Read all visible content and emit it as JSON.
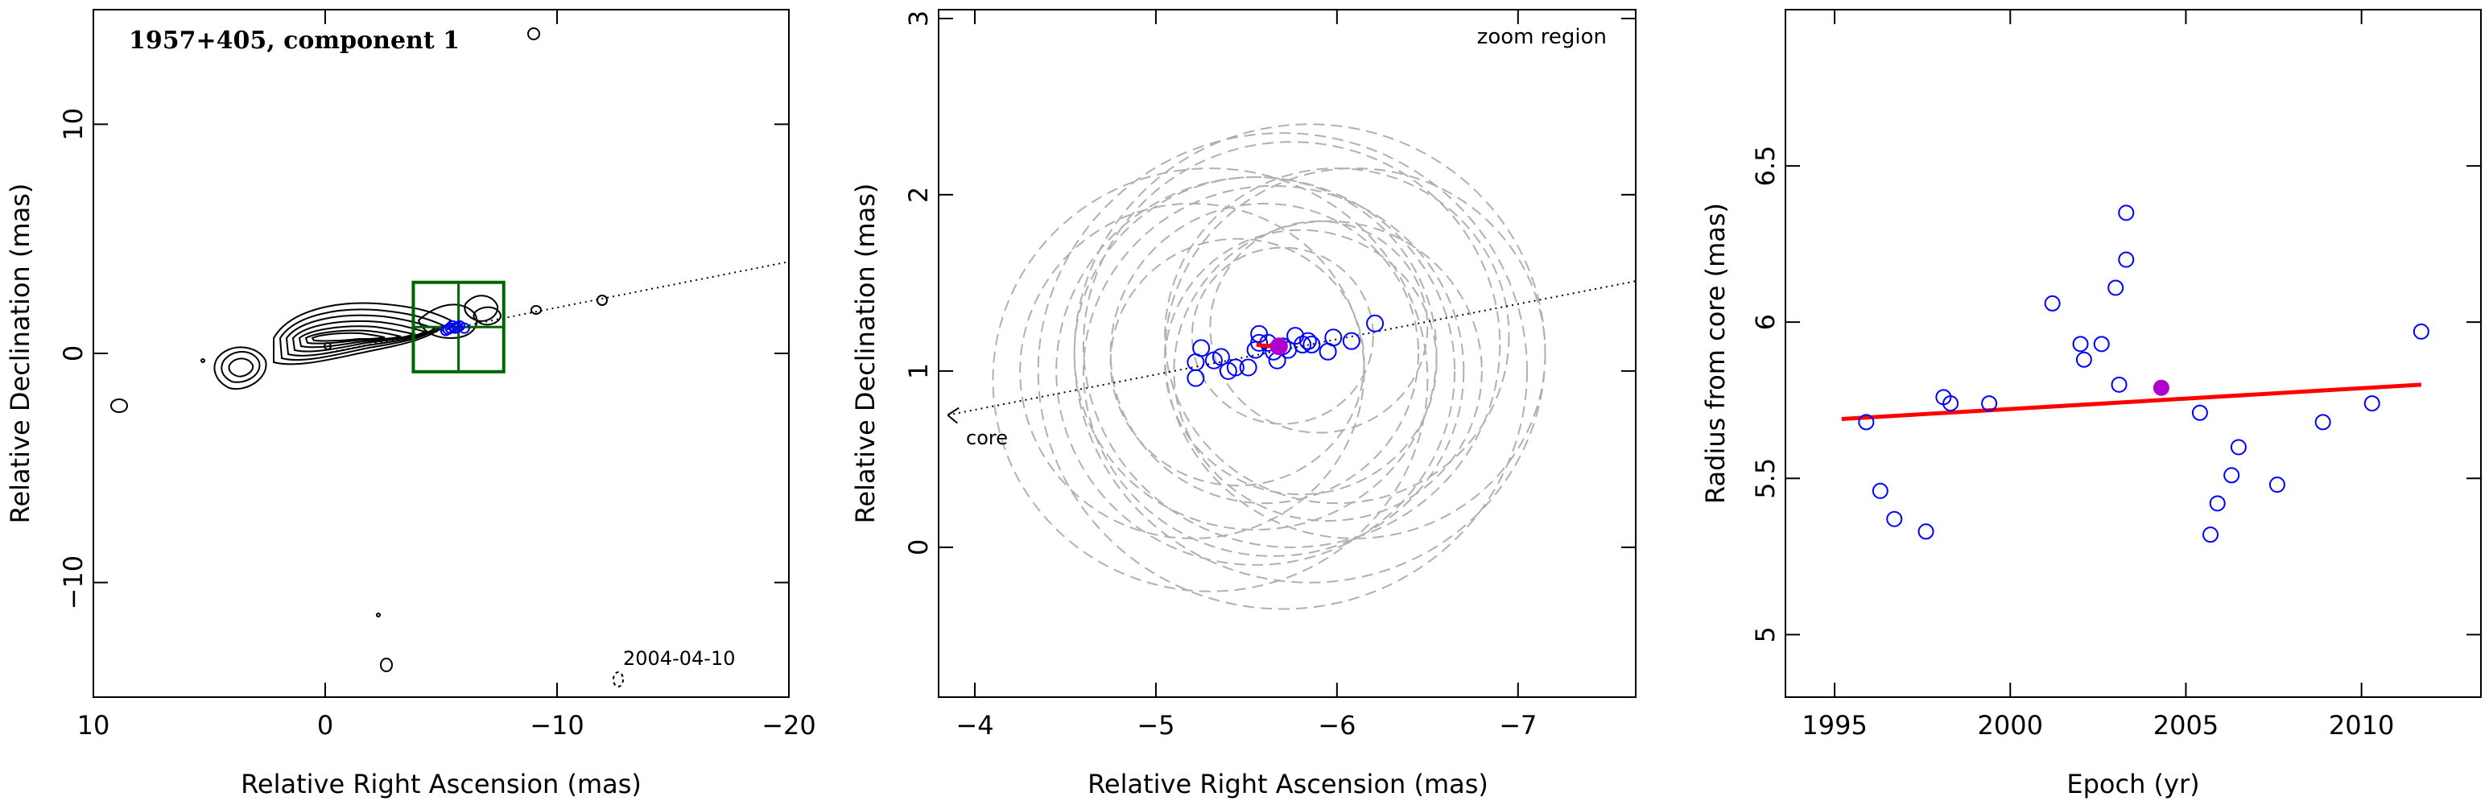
{
  "chart_data": [
    {
      "type": "scatter",
      "subtype": "vlbi-contour-map",
      "title": "1957+405, component 1",
      "date_label": "2004-04-10",
      "xlabel": "Relative Right Ascension (mas)",
      "ylabel": "Relative Declination (mas)",
      "xlim": [
        10,
        -20
      ],
      "ylim": [
        -15,
        15
      ],
      "xticks": [
        10,
        0,
        -10,
        -20
      ],
      "yticks": [
        -10,
        0,
        10
      ],
      "xtick_labels": [
        "10",
        "0",
        "−10",
        "−20"
      ],
      "ytick_labels": [
        "−10",
        "0",
        "10"
      ],
      "core_direction_line": {
        "from": [
          0,
          0
        ],
        "to": [
          -20,
          4.0
        ]
      },
      "zoom_box": {
        "x": [
          -3.8,
          -7.7
        ],
        "y": [
          -0.8,
          3.1
        ]
      },
      "component_positions": [
        {
          "x": -5.2,
          "y": 1.0
        },
        {
          "x": -5.4,
          "y": 1.1
        },
        {
          "x": -5.6,
          "y": 1.1
        },
        {
          "x": -5.8,
          "y": 1.2
        },
        {
          "x": -6.0,
          "y": 1.1
        },
        {
          "x": -5.5,
          "y": 1.2
        },
        {
          "x": -5.7,
          "y": 1.15
        },
        {
          "x": -5.3,
          "y": 1.05
        }
      ],
      "series_colors": {
        "contour": "#000000",
        "points": "#0000ff",
        "zoom_box": "#006400"
      }
    },
    {
      "type": "scatter",
      "subtype": "zoom-region",
      "annotation": "zoom region",
      "core_label": "core",
      "xlabel": "Relative Right Ascension (mas)",
      "ylabel": "Relative Declination (mas)",
      "xlim": [
        -3.8,
        -7.65
      ],
      "ylim": [
        -0.85,
        3.05
      ],
      "xticks": [
        -4,
        -5,
        -6,
        -7
      ],
      "yticks": [
        0,
        1,
        2,
        3
      ],
      "xtick_labels": [
        "−4",
        "−5",
        "−6",
        "−7"
      ],
      "ytick_labels": [
        "0",
        "1",
        "2",
        "3"
      ],
      "core_direction_line": {
        "from": [
          -3.85,
          0.75
        ],
        "to": [
          -7.65,
          1.51
        ]
      },
      "points": [
        {
          "x": -5.22,
          "y": 0.96
        },
        {
          "x": -5.22,
          "y": 1.05
        },
        {
          "x": -5.25,
          "y": 1.13
        },
        {
          "x": -5.32,
          "y": 1.06
        },
        {
          "x": -5.36,
          "y": 1.08
        },
        {
          "x": -5.4,
          "y": 1.0
        },
        {
          "x": -5.44,
          "y": 1.02
        },
        {
          "x": -5.51,
          "y": 1.02
        },
        {
          "x": -5.55,
          "y": 1.12
        },
        {
          "x": -5.57,
          "y": 1.16
        },
        {
          "x": -5.57,
          "y": 1.21
        },
        {
          "x": -5.62,
          "y": 1.16
        },
        {
          "x": -5.65,
          "y": 1.11
        },
        {
          "x": -5.67,
          "y": 1.06
        },
        {
          "x": -5.7,
          "y": 1.14
        },
        {
          "x": -5.73,
          "y": 1.12
        },
        {
          "x": -5.77,
          "y": 1.2
        },
        {
          "x": -5.81,
          "y": 1.15
        },
        {
          "x": -5.84,
          "y": 1.17
        },
        {
          "x": -5.86,
          "y": 1.15
        },
        {
          "x": -5.95,
          "y": 1.11
        },
        {
          "x": -5.98,
          "y": 1.19
        },
        {
          "x": -6.08,
          "y": 1.17
        },
        {
          "x": -6.21,
          "y": 1.27
        }
      ],
      "mean_point": {
        "x": -5.68,
        "y": 1.14
      },
      "circles": [
        {
          "cx": -5.65,
          "cy": 1.0,
          "r": 1.05
        },
        {
          "cx": -5.85,
          "cy": 1.1,
          "r": 1.3
        },
        {
          "cx": -5.55,
          "cy": 1.0,
          "r": 1.1
        },
        {
          "cx": -5.75,
          "cy": 1.15,
          "r": 1.15
        },
        {
          "cx": -5.3,
          "cy": 0.95,
          "r": 1.2
        },
        {
          "cx": -5.7,
          "cy": 1.0,
          "r": 1.35
        },
        {
          "cx": -6.0,
          "cy": 1.2,
          "r": 0.95
        },
        {
          "cx": -5.8,
          "cy": 1.05,
          "r": 0.75
        },
        {
          "cx": -5.6,
          "cy": 1.1,
          "r": 0.85
        },
        {
          "cx": -5.9,
          "cy": 1.25,
          "r": 0.6
        },
        {
          "cx": -5.45,
          "cy": 1.05,
          "r": 0.7
        },
        {
          "cx": -5.2,
          "cy": 1.0,
          "r": 0.95
        },
        {
          "cx": -6.1,
          "cy": 1.1,
          "r": 1.05
        },
        {
          "cx": -5.7,
          "cy": 1.2,
          "r": 0.5
        },
        {
          "cx": -5.55,
          "cy": 1.1,
          "r": 1.0
        },
        {
          "cx": -5.95,
          "cy": 1.0,
          "r": 0.85
        }
      ],
      "series_colors": {
        "points": "#0000ff",
        "mean": "#b000d0",
        "arrow": "#ff0000",
        "circles": "#b0b0b0"
      }
    },
    {
      "type": "scatter",
      "subtype": "radius-vs-epoch",
      "xlabel": "Epoch (yr)",
      "ylabel": "Radius from core (mas)",
      "xlim": [
        1993.6,
        2013.4
      ],
      "ylim": [
        4.8,
        7.0
      ],
      "xticks": [
        1995,
        2000,
        2005,
        2010
      ],
      "yticks": [
        5,
        5.5,
        6,
        6.5
      ],
      "xtick_labels": [
        "1995",
        "2000",
        "2005",
        "2010"
      ],
      "ytick_labels": [
        "5",
        "5.5",
        "6",
        "6.5"
      ],
      "points": [
        {
          "x": 1995.9,
          "y": 5.68
        },
        {
          "x": 1996.3,
          "y": 5.46
        },
        {
          "x": 1996.7,
          "y": 5.37
        },
        {
          "x": 1997.6,
          "y": 5.33
        },
        {
          "x": 1998.1,
          "y": 5.76
        },
        {
          "x": 1998.3,
          "y": 5.74
        },
        {
          "x": 1999.4,
          "y": 5.74
        },
        {
          "x": 2001.2,
          "y": 6.06
        },
        {
          "x": 2002.0,
          "y": 5.93
        },
        {
          "x": 2002.1,
          "y": 5.88
        },
        {
          "x": 2002.6,
          "y": 5.93
        },
        {
          "x": 2003.0,
          "y": 6.11
        },
        {
          "x": 2003.1,
          "y": 5.8
        },
        {
          "x": 2003.3,
          "y": 6.2
        },
        {
          "x": 2003.3,
          "y": 6.35
        },
        {
          "x": 2005.4,
          "y": 5.71
        },
        {
          "x": 2005.7,
          "y": 5.32
        },
        {
          "x": 2005.9,
          "y": 5.42
        },
        {
          "x": 2006.3,
          "y": 5.51
        },
        {
          "x": 2006.5,
          "y": 5.6
        },
        {
          "x": 2007.6,
          "y": 5.48
        },
        {
          "x": 2008.9,
          "y": 5.68
        },
        {
          "x": 2010.3,
          "y": 5.74
        },
        {
          "x": 2011.7,
          "y": 5.97
        }
      ],
      "mean_point": {
        "x": 2004.3,
        "y": 5.79
      },
      "fit_line": {
        "x": [
          1995.2,
          2011.7
        ],
        "y": [
          5.69,
          5.8
        ]
      },
      "series_colors": {
        "points": "#0000ff",
        "mean": "#b000d0",
        "fit": "#ff0000"
      }
    }
  ]
}
